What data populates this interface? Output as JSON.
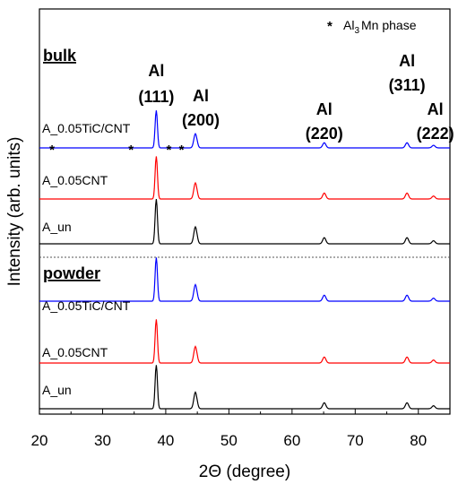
{
  "chart_data": {
    "type": "line",
    "xlabel": "2Θ (degree)",
    "ylabel": "Intensity (arb. units)",
    "xlim": [
      20,
      85
    ],
    "x_ticks": [
      "20",
      "30",
      "40",
      "50",
      "60",
      "70",
      "80"
    ],
    "legend": {
      "marker": "*",
      "text": "Al",
      "sub": "3",
      "text_after": "Mn  phase"
    },
    "sections": [
      {
        "name": "bulk",
        "traces": [
          {
            "label": "A_0.05TiC/CNT",
            "color": "#0000ff"
          },
          {
            "label": "A_0.05CNT",
            "color": "#ff0000"
          },
          {
            "label": "A_un",
            "color": "#000000"
          }
        ]
      },
      {
        "name": "powder",
        "traces": [
          {
            "label": "A_0.05TiC/CNT",
            "color": "#0000ff"
          },
          {
            "label": "A_0.05CNT",
            "color": "#ff0000"
          },
          {
            "label": "A_un",
            "color": "#000000"
          }
        ]
      }
    ],
    "peaks": [
      {
        "x": 38.5,
        "element": "Al",
        "hkl": "(111)"
      },
      {
        "x": 44.7,
        "element": "Al",
        "hkl": "(200)"
      },
      {
        "x": 65.1,
        "element": "Al",
        "hkl": "(220)"
      },
      {
        "x": 78.2,
        "element": "Al",
        "hkl": "(311)"
      },
      {
        "x": 82.4,
        "element": "Al",
        "hkl": "(222)"
      }
    ],
    "al3mn_markers": [
      22,
      34.5,
      40.5,
      42.5
    ]
  }
}
